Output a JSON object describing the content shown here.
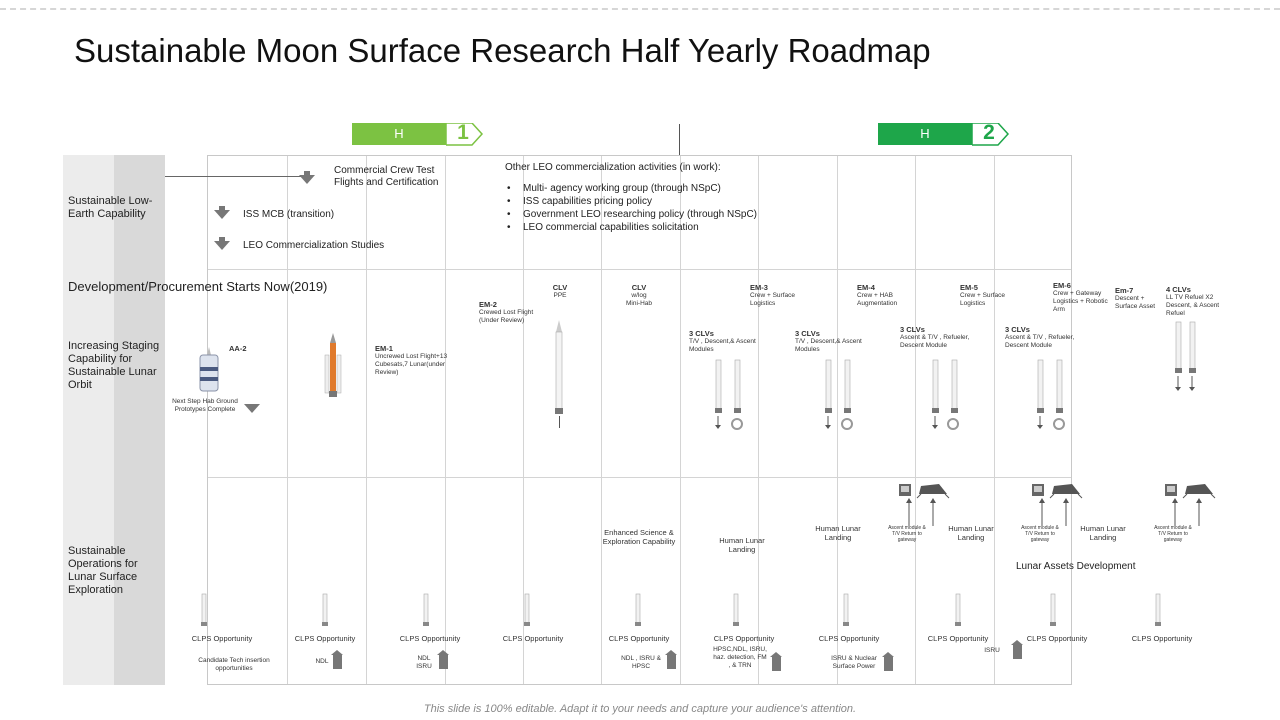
{
  "title": "Sustainable Moon Surface Research Half Yearly Roadmap",
  "banners": [
    {
      "label": "H",
      "num": "1",
      "color": "#7cc242"
    },
    {
      "label": "H",
      "num": "2",
      "color": "#1ea64a"
    }
  ],
  "rows": {
    "leo": "Sustainable Low-Earth Capability",
    "dev": "Development/Procurement Starts Now(2019)",
    "staging": "Increasing Staging Capability for Sustainable Lunar Orbit",
    "ops": "Sustainable Operations for Lunar Surface Exploration"
  },
  "leo": {
    "commercial_crew": "Commercial Crew Test Flights and Certification",
    "iss_mcb": "ISS MCB (transition)",
    "leo_studies": "LEO Commercialization Studies",
    "other_title": "Other LEO commercialization activities (in work):",
    "bullets": [
      "Multi- agency working group (through NSpC)",
      "ISS capabilities pricing policy",
      "Government LEO researching policy (through NSpC)",
      "LEO commercial capabilities solicitation"
    ]
  },
  "staging": {
    "aa2": "AA-2",
    "nextstep": "Next Step Hab Ground Prototypes Complete",
    "em1_title": "EM-1",
    "em1_desc": "Uncrewed Lost Flight+13 Cubesats,7 Lunar(under Review)",
    "em2_title": "EM-2",
    "em2_desc": "Crewed Lost Flight (Under Review)",
    "clv1_title": "CLV",
    "clv1_desc": "PPE",
    "clv2_title": "CLV",
    "clv2_desc": "w/log Mini-Hab",
    "em3_title": "EM-3",
    "em3_desc": "Crew + Surface Logistics",
    "em4_title": "EM-4",
    "em4_desc": "Crew + HAB Augmentation",
    "em5_title": "EM-5",
    "em5_desc": "Crew + Surface Logistics",
    "em6_title": "EM-6",
    "em6_desc": "Crew + Gateway Logistics + Robotic Arm",
    "em7_title": "Em-7",
    "em7_desc": "Descent + Surface Asset",
    "clv4_title": "4 CLVs",
    "clv4_desc": "LL TV Refuel X2 Descent, & Ascent Refuel",
    "clvs1_title": "3 CLVs",
    "clvs1_desc": "T/V , Descent,& Ascent Modules",
    "clvs2_title": "3 CLVs",
    "clvs2_desc": "T/V , Descent,& Ascent Modules",
    "clvs3_title": "3 CLVs",
    "clvs3_desc": "Ascent & T/V , Refueler, Descent Module",
    "clvs4_title": "3 CLVs",
    "clvs4_desc": "Ascent & T/V , Refueler, Descent Module"
  },
  "ops": {
    "enhanced": "Enhanced Science & Exploration Capability",
    "human_landing": "Human Lunar Landing",
    "ascent_note": "Ascent module & T/V Return to gateway",
    "lunar_assets": "Lunar Assets Development",
    "clps": "CLPS Opportunity",
    "payloads": [
      "Candidate Tech insertion opportunities",
      "NDL",
      "NDL ISRU",
      "NDL , ISRU & HPSC",
      "HPSC,NDL, ISRU, haz. detection, FM , & TRN",
      "ISRU & Nuclear Surface Power",
      "ISRU"
    ]
  },
  "footer": "This slide is 100% editable. Adapt it to your needs and capture your audience's attention."
}
